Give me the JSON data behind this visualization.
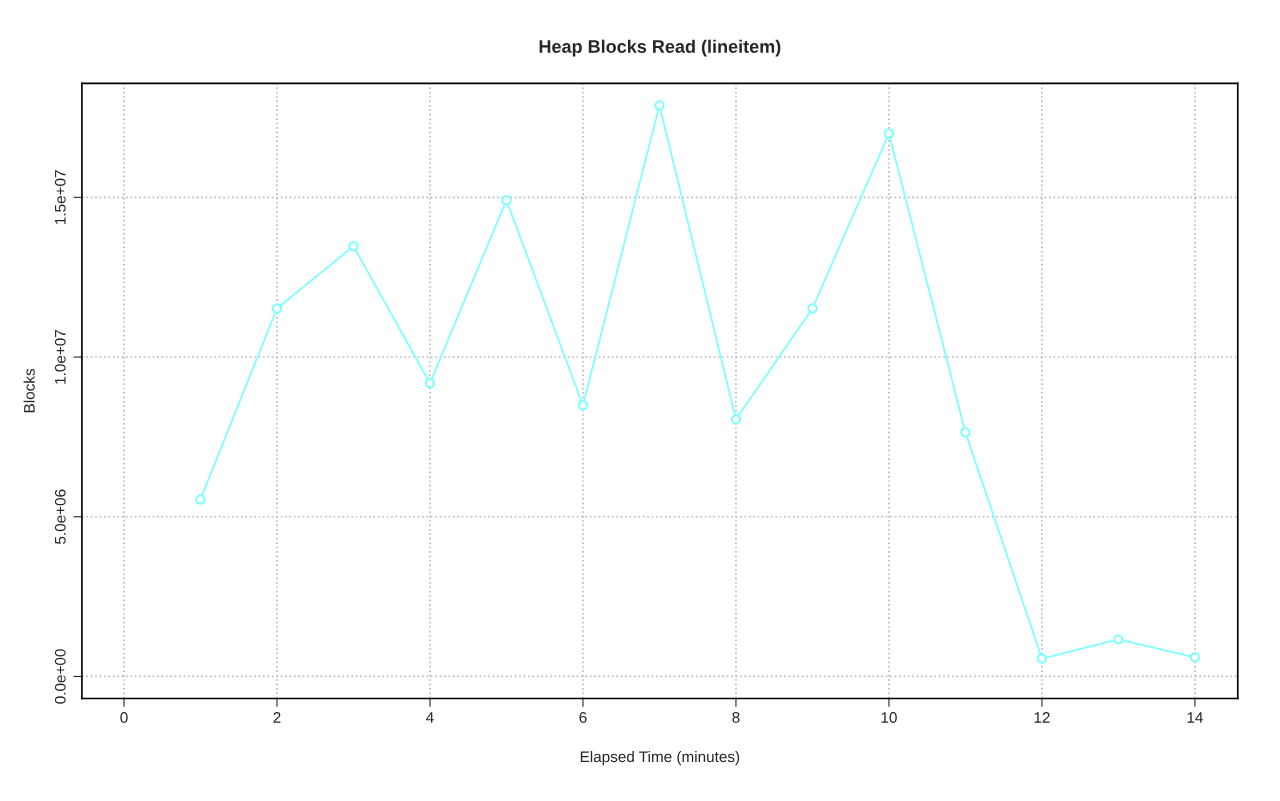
{
  "chart_data": {
    "type": "line",
    "title": "Heap Blocks Read (lineitem)",
    "xlabel": "Elapsed Time (minutes)",
    "ylabel": "Blocks",
    "x": [
      1,
      2,
      3,
      4,
      5,
      6,
      7,
      8,
      9,
      10,
      11,
      12,
      13,
      14
    ],
    "series": [
      {
        "color": "#7fffff",
        "values": [
          5540000,
          11520000,
          13470000,
          9180000,
          14910000,
          8490000,
          17880000,
          8050000,
          11520000,
          17000000,
          7640000,
          560000,
          1160000,
          600000
        ]
      }
    ],
    "xlim": [
      -0.55,
      14.56
    ],
    "xticks": [
      0,
      2,
      4,
      6,
      8,
      10,
      12,
      14
    ],
    "ylim": [
      -690000,
      18570000
    ],
    "yticks": [
      {
        "value": 0,
        "label": "0.0e+00"
      },
      {
        "value": 5000000,
        "label": "5.0e+06"
      },
      {
        "value": 10000000,
        "label": "1.0e+07"
      },
      {
        "value": 15000000,
        "label": "1.5e+07"
      }
    ],
    "grid": true,
    "marker": "circle",
    "line_style": "solid",
    "legend": false
  }
}
